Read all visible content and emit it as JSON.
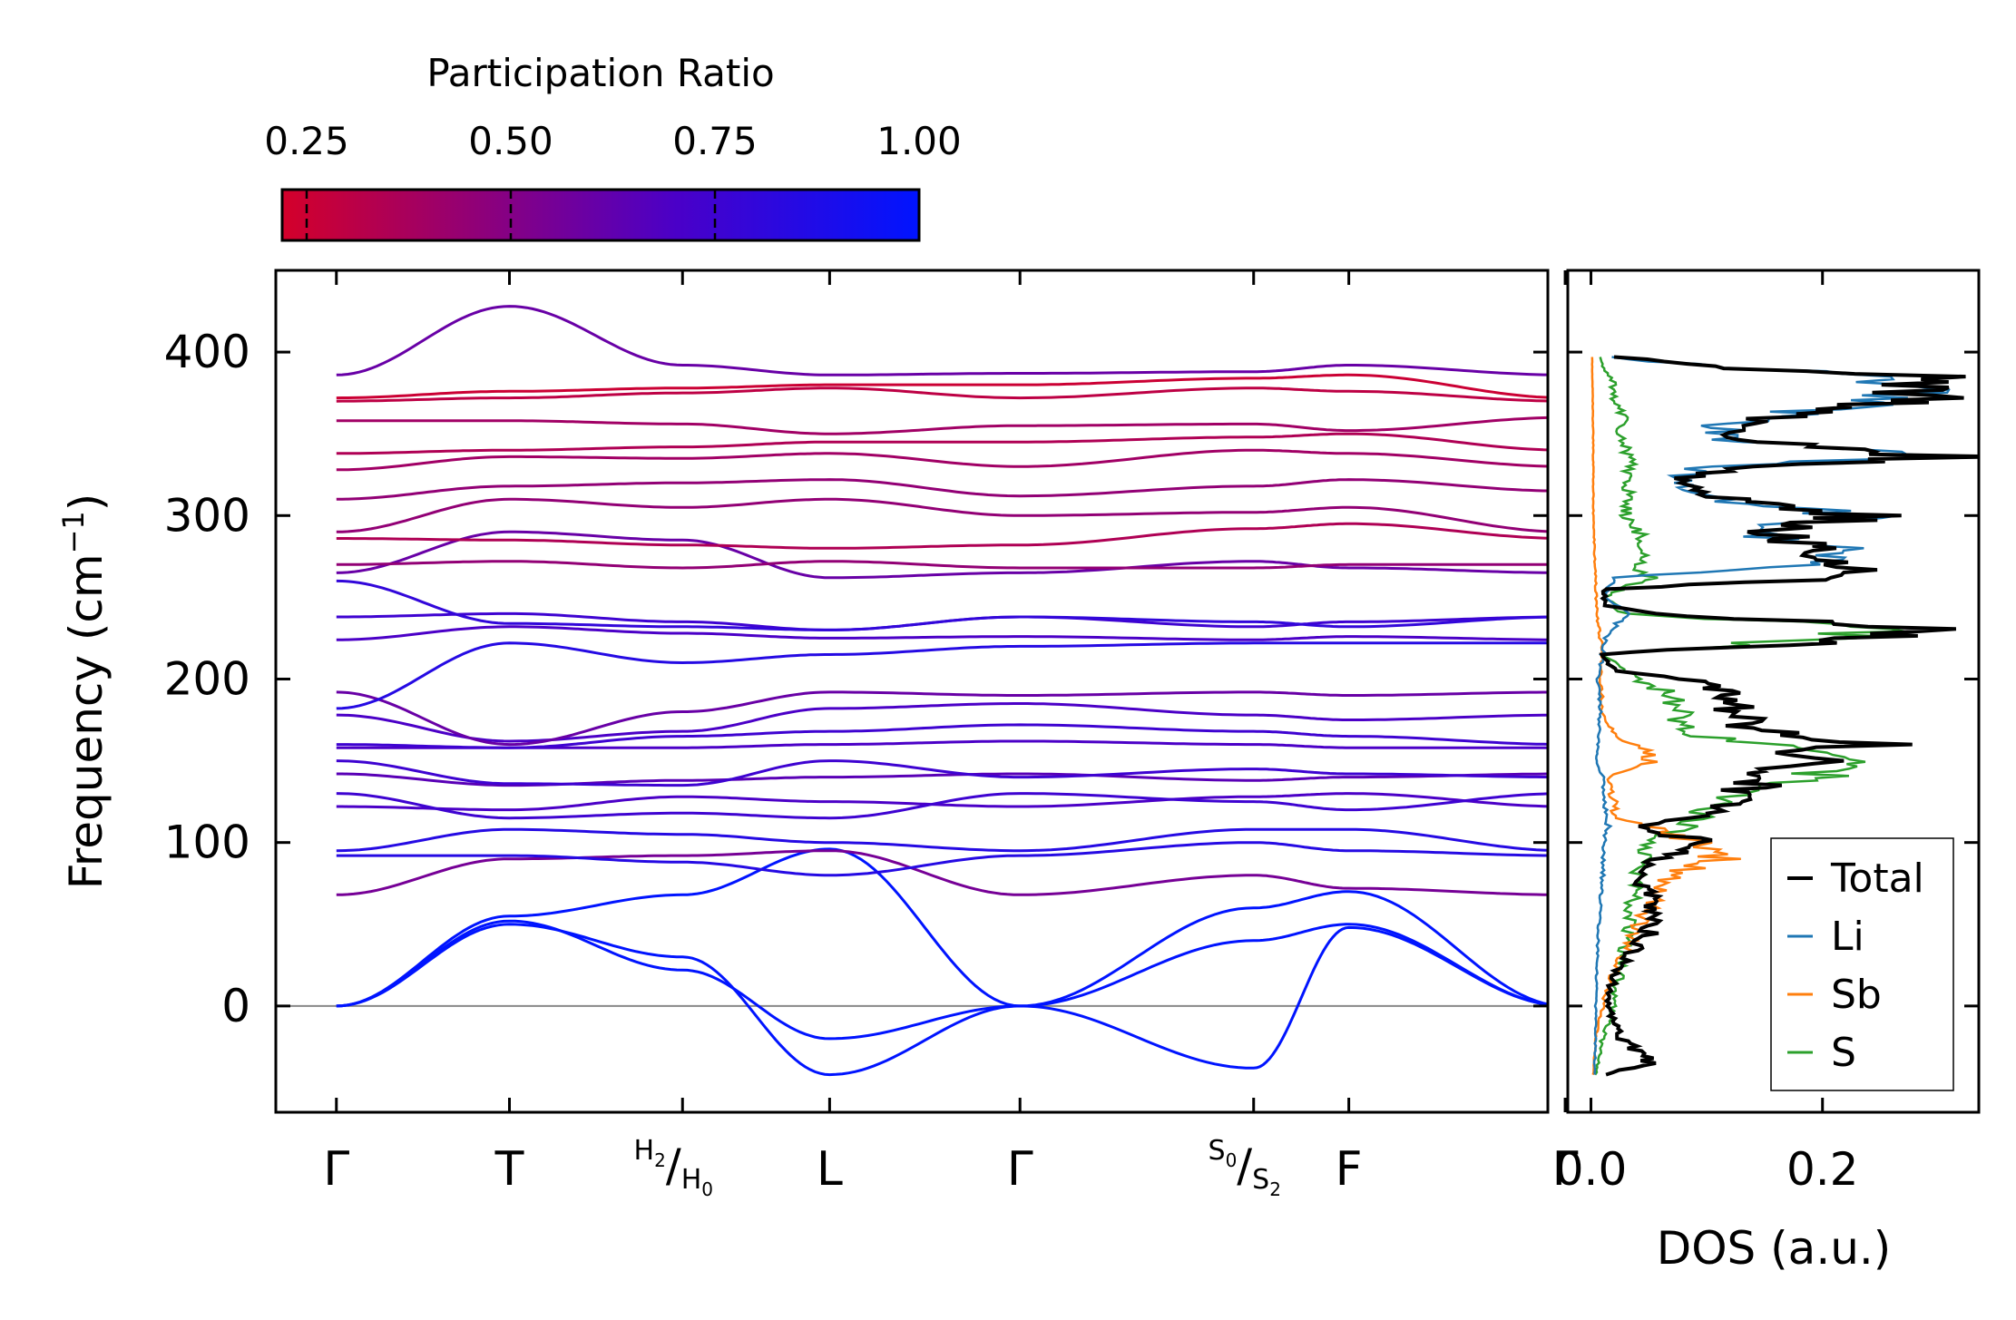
{
  "colors": {
    "cmap_low": "#d4002a",
    "cmap_mid": "#4a00c8",
    "cmap_high": "#0014ff",
    "total": "#000000",
    "li": "#1f77b4",
    "sb": "#ff7f0e",
    "s": "#2ca02c",
    "zero_line": "#888888"
  },
  "chart_data": [
    {
      "type": "line",
      "name": "phonon-band-structure",
      "ylabel": "Frequency (cm",
      "ylabel_sup": "−1",
      "ylabel_close": ")",
      "ylim": [
        -65,
        450
      ],
      "yticks": [
        0,
        100,
        200,
        300,
        400
      ],
      "xlim": [
        -0.35,
        7.0
      ],
      "kpoints": [
        {
          "x": 0,
          "label": "Γ"
        },
        {
          "x": 1,
          "label": "T"
        },
        {
          "x": 2,
          "label": "H",
          "sub": "2",
          "slash": "/",
          "label2": "H",
          "sub2": "0",
          "split": true
        },
        {
          "x": 2.85,
          "label": "L"
        },
        {
          "x": 3.95,
          "label": "Γ"
        },
        {
          "x": 5.3,
          "label": "S",
          "sub": "0",
          "slash": "/",
          "label2": "S",
          "sub2": "2",
          "split": true
        },
        {
          "x": 5.85,
          "label": "F"
        },
        {
          "x": 7.1,
          "label": "Γ"
        }
      ],
      "segments": [
        [
          0,
          1
        ],
        [
          1,
          2
        ],
        [
          2,
          2.85
        ],
        [
          2.85,
          3.95
        ],
        [
          3.95,
          5.3
        ],
        [
          5.3,
          5.85
        ],
        [
          5.85,
          7.1
        ]
      ],
      "bands_note": "frequencies at each k-point (cm^-1), pr = participation ratio",
      "bands": [
        {
          "f": [
            0,
            52,
            22,
            -20,
            0,
            -38,
            48,
            0
          ],
          "pr": 1.0
        },
        {
          "f": [
            0,
            50,
            30,
            -42,
            0,
            40,
            50,
            0
          ],
          "pr": 1.0
        },
        {
          "f": [
            0,
            55,
            68,
            96,
            0,
            60,
            70,
            0
          ],
          "pr": 1.0
        },
        {
          "f": [
            68,
            90,
            92,
            95,
            68,
            80,
            72,
            68
          ],
          "pr": 0.55
        },
        {
          "f": [
            92,
            92,
            88,
            80,
            92,
            100,
            95,
            92
          ],
          "pr": 0.85
        },
        {
          "f": [
            95,
            108,
            105,
            100,
            95,
            108,
            108,
            95
          ],
          "pr": 0.85
        },
        {
          "f": [
            122,
            120,
            128,
            125,
            122,
            128,
            130,
            122
          ],
          "pr": 0.7
        },
        {
          "f": [
            130,
            115,
            118,
            115,
            130,
            125,
            120,
            130
          ],
          "pr": 0.75
        },
        {
          "f": [
            142,
            135,
            138,
            140,
            142,
            138,
            140,
            142
          ],
          "pr": 0.65
        },
        {
          "f": [
            150,
            136,
            135,
            150,
            140,
            145,
            142,
            140
          ],
          "pr": 0.75
        },
        {
          "f": [
            158,
            158,
            158,
            160,
            162,
            160,
            158,
            158
          ],
          "pr": 0.7
        },
        {
          "f": [
            160,
            158,
            165,
            168,
            172,
            168,
            165,
            160
          ],
          "pr": 0.75
        },
        {
          "f": [
            178,
            162,
            168,
            182,
            185,
            178,
            175,
            178
          ],
          "pr": 0.7
        },
        {
          "f": [
            192,
            160,
            180,
            192,
            190,
            192,
            190,
            192
          ],
          "pr": 0.6
        },
        {
          "f": [
            182,
            222,
            210,
            215,
            220,
            222,
            222,
            222
          ],
          "pr": 0.85
        },
        {
          "f": [
            238,
            240,
            235,
            230,
            238,
            232,
            235,
            238
          ],
          "pr": 0.75
        },
        {
          "f": [
            224,
            232,
            228,
            225,
            226,
            224,
            226,
            224
          ],
          "pr": 0.7
        },
        {
          "f": [
            260,
            234,
            232,
            230,
            238,
            235,
            232,
            238
          ],
          "pr": 0.8
        },
        {
          "f": [
            265,
            290,
            285,
            262,
            265,
            272,
            268,
            265
          ],
          "pr": 0.6
        },
        {
          "f": [
            270,
            272,
            268,
            272,
            268,
            268,
            270,
            270
          ],
          "pr": 0.45
        },
        {
          "f": [
            286,
            285,
            282,
            280,
            282,
            292,
            295,
            286
          ],
          "pr": 0.35
        },
        {
          "f": [
            290,
            310,
            305,
            310,
            300,
            302,
            305,
            290
          ],
          "pr": 0.45
        },
        {
          "f": [
            310,
            318,
            320,
            322,
            312,
            318,
            322,
            315
          ],
          "pr": 0.45
        },
        {
          "f": [
            328,
            336,
            335,
            338,
            330,
            340,
            338,
            330
          ],
          "pr": 0.4
        },
        {
          "f": [
            338,
            340,
            342,
            345,
            345,
            348,
            350,
            340
          ],
          "pr": 0.35
        },
        {
          "f": [
            358,
            358,
            356,
            350,
            355,
            356,
            352,
            360
          ],
          "pr": 0.4
        },
        {
          "f": [
            370,
            372,
            375,
            378,
            372,
            378,
            376,
            370
          ],
          "pr": 0.3
        },
        {
          "f": [
            372,
            376,
            378,
            380,
            380,
            384,
            386,
            372
          ],
          "pr": 0.25
        },
        {
          "f": [
            386,
            428,
            392,
            386,
            387,
            388,
            392,
            386
          ],
          "pr": 0.6
        }
      ]
    },
    {
      "type": "line",
      "name": "phonon-dos",
      "xlabel": "DOS (a.u.)",
      "xlim": [
        -0.02,
        0.335
      ],
      "ylim": [
        -65,
        450
      ],
      "xticks": [
        0.0,
        0.2
      ],
      "xtick_labels": [
        "0.0",
        "0.2"
      ],
      "legend_placement": "lower-right",
      "series": [
        {
          "name": "Total",
          "key": "total",
          "y": [
            -42,
            -35,
            -20,
            0,
            20,
            40,
            55,
            70,
            85,
            100,
            110,
            115,
            125,
            135,
            145,
            150,
            155,
            160,
            170,
            180,
            190,
            200,
            205,
            215,
            225,
            232,
            240,
            245,
            255,
            262,
            270,
            280,
            290,
            300,
            310,
            320,
            330,
            336,
            345,
            355,
            365,
            372,
            380,
            385,
            390,
            397
          ],
          "v": [
            0.012,
            0.055,
            0.025,
            0.015,
            0.02,
            0.045,
            0.06,
            0.048,
            0.04,
            0.1,
            0.035,
            0.09,
            0.12,
            0.14,
            0.16,
            0.25,
            0.16,
            0.26,
            0.14,
            0.12,
            0.13,
            0.08,
            0.02,
            0.008,
            0.25,
            0.28,
            0.05,
            0.012,
            0.012,
            0.24,
            0.2,
            0.22,
            0.14,
            0.24,
            0.12,
            0.07,
            0.12,
            0.32,
            0.14,
            0.12,
            0.2,
            0.3,
            0.26,
            0.31,
            0.13,
            0.02
          ]
        },
        {
          "name": "Li",
          "key": "li",
          "y": [
            -42,
            -20,
            0,
            20,
            40,
            60,
            80,
            100,
            110,
            120,
            140,
            150,
            160,
            180,
            200,
            215,
            225,
            240,
            250,
            262,
            270,
            280,
            290,
            300,
            310,
            320,
            330,
            336,
            345,
            355,
            365,
            372,
            380,
            385,
            390,
            397
          ],
          "v": [
            0.003,
            0.004,
            0.004,
            0.005,
            0.006,
            0.008,
            0.01,
            0.012,
            0.015,
            0.012,
            0.01,
            0.005,
            0.006,
            0.008,
            0.006,
            0.01,
            0.012,
            0.03,
            0.012,
            0.02,
            0.19,
            0.21,
            0.13,
            0.23,
            0.11,
            0.07,
            0.1,
            0.31,
            0.13,
            0.11,
            0.19,
            0.29,
            0.25,
            0.3,
            0.12,
            0.018
          ]
        },
        {
          "name": "Sb",
          "key": "sb",
          "y": [
            -42,
            -20,
            0,
            20,
            40,
            60,
            80,
            90,
            100,
            110,
            115,
            125,
            140,
            148,
            155,
            165,
            180,
            200,
            215,
            240,
            260,
            300,
            340,
            397
          ],
          "v": [
            0.002,
            0.004,
            0.01,
            0.02,
            0.035,
            0.05,
            0.07,
            0.11,
            0.09,
            0.05,
            0.02,
            0.02,
            0.015,
            0.05,
            0.05,
            0.02,
            0.01,
            0.008,
            0.01,
            0.005,
            0.004,
            0.002,
            0.002,
            0.001
          ]
        },
        {
          "name": "S",
          "key": "s",
          "y": [
            -42,
            -20,
            0,
            20,
            40,
            60,
            80,
            100,
            110,
            120,
            135,
            148,
            155,
            165,
            175,
            190,
            200,
            215,
            225,
            232,
            240,
            250,
            262,
            270,
            280,
            290,
            300,
            310,
            320,
            330,
            340,
            350,
            360,
            370,
            380,
            390,
            397
          ],
          "v": [
            0.004,
            0.01,
            0.02,
            0.025,
            0.03,
            0.035,
            0.04,
            0.05,
            0.08,
            0.1,
            0.14,
            0.26,
            0.24,
            0.1,
            0.08,
            0.07,
            0.04,
            0.01,
            0.2,
            0.25,
            0.03,
            0.012,
            0.05,
            0.04,
            0.05,
            0.04,
            0.03,
            0.035,
            0.03,
            0.035,
            0.03,
            0.025,
            0.03,
            0.02,
            0.02,
            0.012,
            0.008
          ]
        }
      ]
    }
  ],
  "colorbar": {
    "title": "Participation Ratio",
    "min": 0.22,
    "max": 1.0,
    "ticks": [
      0.25,
      0.5,
      0.75,
      1.0
    ],
    "tick_labels": [
      "0.25",
      "0.50",
      "0.75",
      "1.00"
    ]
  }
}
